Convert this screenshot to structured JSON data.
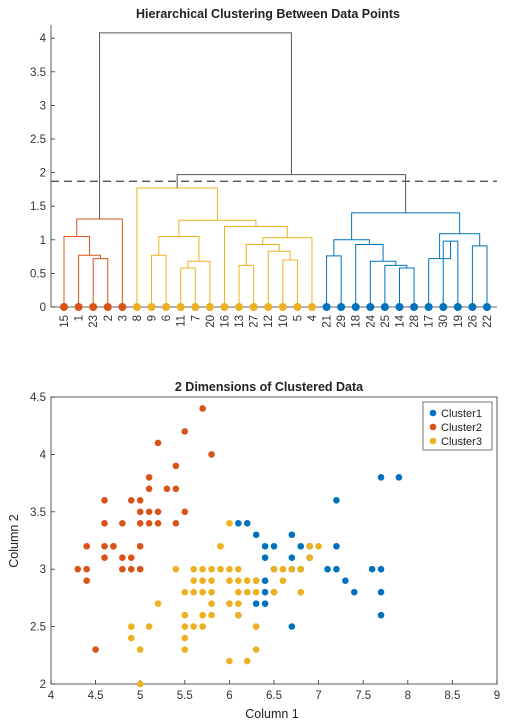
{
  "colors": {
    "cluster1": "#0072BD",
    "cluster2": "#D95319",
    "cluster3": "#EDB120",
    "top": "#555555",
    "cut": "#555555"
  },
  "chart_data": [
    {
      "type": "dendrogram",
      "title": "Hierarchical Clustering Between Data Points",
      "ylim": [
        0,
        4.2
      ],
      "yticks": [
        "0",
        "0.5",
        "1",
        "1.5",
        "2",
        "2.5",
        "3",
        "3.5",
        "4"
      ],
      "cut_height": 1.87,
      "leaves": [
        {
          "label": "15",
          "cluster": 2
        },
        {
          "label": "1",
          "cluster": 2
        },
        {
          "label": "23",
          "cluster": 2
        },
        {
          "label": "2",
          "cluster": 2
        },
        {
          "label": "3",
          "cluster": 2
        },
        {
          "label": "8",
          "cluster": 3
        },
        {
          "label": "9",
          "cluster": 3
        },
        {
          "label": "6",
          "cluster": 3
        },
        {
          "label": "11",
          "cluster": 3
        },
        {
          "label": "7",
          "cluster": 3
        },
        {
          "label": "20",
          "cluster": 3
        },
        {
          "label": "16",
          "cluster": 3
        },
        {
          "label": "13",
          "cluster": 3
        },
        {
          "label": "27",
          "cluster": 3
        },
        {
          "label": "12",
          "cluster": 3
        },
        {
          "label": "10",
          "cluster": 3
        },
        {
          "label": "5",
          "cluster": 3
        },
        {
          "label": "4",
          "cluster": 3
        },
        {
          "label": "21",
          "cluster": 1
        },
        {
          "label": "29",
          "cluster": 1
        },
        {
          "label": "18",
          "cluster": 1
        },
        {
          "label": "24",
          "cluster": 1
        },
        {
          "label": "25",
          "cluster": 1
        },
        {
          "label": "14",
          "cluster": 1
        },
        {
          "label": "28",
          "cluster": 1
        },
        {
          "label": "17",
          "cluster": 1
        },
        {
          "label": "30",
          "cluster": 1
        },
        {
          "label": "19",
          "cluster": 1
        },
        {
          "label": "26",
          "cluster": 1
        },
        {
          "label": "22",
          "cluster": 1
        }
      ],
      "merges": [
        {
          "a": "L2",
          "b": "L3",
          "h": 0.72,
          "cluster": 2
        },
        {
          "a": "L1",
          "b": "m0",
          "h": 0.77,
          "cluster": 2
        },
        {
          "a": "L0",
          "b": "m1",
          "h": 1.05,
          "cluster": 2
        },
        {
          "a": "m2",
          "b": "L4",
          "h": 1.31,
          "cluster": 2
        },
        {
          "a": "L8",
          "b": "L9",
          "h": 0.58,
          "cluster": 3
        },
        {
          "a": "m4",
          "b": "L10",
          "h": 0.68,
          "cluster": 3
        },
        {
          "a": "L6",
          "b": "L7",
          "h": 0.77,
          "cluster": 3
        },
        {
          "a": "m6",
          "b": "m5",
          "h": 1.05,
          "cluster": 3
        },
        {
          "a": "L12",
          "b": "L13",
          "h": 0.62,
          "cluster": 3
        },
        {
          "a": "L15",
          "b": "L16",
          "h": 0.7,
          "cluster": 3
        },
        {
          "a": "L14",
          "b": "m9",
          "h": 0.83,
          "cluster": 3
        },
        {
          "a": "m8",
          "b": "m10",
          "h": 0.93,
          "cluster": 3
        },
        {
          "a": "m11",
          "b": "L17",
          "h": 1.03,
          "cluster": 3
        },
        {
          "a": "L11",
          "b": "m12",
          "h": 1.2,
          "cluster": 3
        },
        {
          "a": "m7",
          "b": "m13",
          "h": 1.29,
          "cluster": 3
        },
        {
          "a": "L5",
          "b": "m14",
          "h": 1.77,
          "cluster": 3
        },
        {
          "a": "L18",
          "b": "L19",
          "h": 0.76,
          "cluster": 1
        },
        {
          "a": "L23",
          "b": "L24",
          "h": 0.58,
          "cluster": 1
        },
        {
          "a": "L22",
          "b": "m17",
          "h": 0.62,
          "cluster": 1
        },
        {
          "a": "L21",
          "b": "m18",
          "h": 0.68,
          "cluster": 1
        },
        {
          "a": "L20",
          "b": "m19",
          "h": 0.93,
          "cluster": 1
        },
        {
          "a": "m16",
          "b": "m20",
          "h": 1.0,
          "cluster": 1
        },
        {
          "a": "L28",
          "b": "L29",
          "h": 0.91,
          "cluster": 1
        },
        {
          "a": "L26",
          "b": "L27",
          "h": 0.98,
          "cluster": 1
        },
        {
          "a": "L25",
          "b": "m23",
          "h": 0.72,
          "cluster": 1
        },
        {
          "a": "m24",
          "b": "m22",
          "h": 1.09,
          "cluster": 1
        },
        {
          "a": "m21",
          "b": "m25",
          "h": 1.4,
          "cluster": 1
        },
        {
          "a": "m15",
          "b": "m26",
          "h": 1.97,
          "cluster": 0
        },
        {
          "a": "m3",
          "b": "m27",
          "h": 4.08,
          "cluster": 0
        }
      ]
    },
    {
      "type": "scatter",
      "title": "2 Dimensions of Clustered Data",
      "xlabel": "Column 1",
      "ylabel": "Column 2",
      "xlim": [
        4,
        9
      ],
      "ylim": [
        2,
        4.5
      ],
      "xticks": [
        "4",
        "4.5",
        "5",
        "5.5",
        "6",
        "6.5",
        "7",
        "7.5",
        "8",
        "8.5",
        "9"
      ],
      "yticks": [
        "2",
        "2.5",
        "3",
        "3.5",
        "4",
        "4.5"
      ],
      "legend_position": "top-right",
      "series": [
        {
          "name": "Cluster1",
          "points": [
            [
              7.7,
              3.8
            ],
            [
              7.9,
              3.8
            ],
            [
              7.2,
              3.6
            ],
            [
              6.1,
              3.4
            ],
            [
              6.2,
              3.4
            ],
            [
              6.3,
              3.3
            ],
            [
              6.7,
              3.3
            ],
            [
              6.9,
              3.2
            ],
            [
              7.2,
              3.2
            ],
            [
              6.8,
              3.2
            ],
            [
              6.5,
              3.2
            ],
            [
              6.4,
              3.2
            ],
            [
              6.9,
              3.1
            ],
            [
              6.7,
              3.1
            ],
            [
              6.4,
              3.1
            ],
            [
              7.1,
              3.0
            ],
            [
              7.2,
              3.0
            ],
            [
              7.6,
              3.0
            ],
            [
              7.7,
              3.0
            ],
            [
              6.5,
              3.0
            ],
            [
              6.8,
              3.0
            ],
            [
              6.7,
              3.0
            ],
            [
              6.4,
              2.9
            ],
            [
              6.3,
              2.9
            ],
            [
              7.3,
              2.9
            ],
            [
              6.5,
              2.8
            ],
            [
              6.4,
              2.8
            ],
            [
              7.4,
              2.8
            ],
            [
              7.7,
              2.8
            ],
            [
              6.3,
              2.7
            ],
            [
              6.4,
              2.7
            ],
            [
              6.1,
              2.6
            ],
            [
              7.7,
              2.6
            ],
            [
              6.7,
              2.5
            ]
          ]
        },
        {
          "name": "Cluster2",
          "points": [
            [
              5.7,
              4.4
            ],
            [
              5.2,
              4.1
            ],
            [
              5.5,
              4.2
            ],
            [
              5.8,
              4.0
            ],
            [
              5.4,
              3.9
            ],
            [
              5.1,
              3.8
            ],
            [
              5.0,
              3.6
            ],
            [
              4.6,
              3.6
            ],
            [
              4.9,
              3.6
            ],
            [
              5.1,
              3.7
            ],
            [
              5.3,
              3.7
            ],
            [
              5.4,
              3.7
            ],
            [
              5.0,
              3.5
            ],
            [
              5.1,
              3.5
            ],
            [
              5.5,
              3.5
            ],
            [
              5.2,
              3.5
            ],
            [
              4.6,
              3.4
            ],
            [
              4.8,
              3.4
            ],
            [
              5.0,
              3.4
            ],
            [
              5.1,
              3.4
            ],
            [
              5.2,
              3.4
            ],
            [
              5.4,
              3.4
            ],
            [
              4.7,
              3.2
            ],
            [
              4.6,
              3.2
            ],
            [
              4.8,
              3.1
            ],
            [
              4.9,
              3.1
            ],
            [
              5.0,
              3.2
            ],
            [
              4.4,
              3.2
            ],
            [
              4.6,
              3.1
            ],
            [
              4.7,
              3.2
            ],
            [
              4.8,
              3.0
            ],
            [
              4.9,
              3.0
            ],
            [
              5.0,
              3.0
            ],
            [
              4.3,
              3.0
            ],
            [
              4.4,
              3.0
            ],
            [
              4.4,
              2.9
            ],
            [
              4.5,
              2.3
            ]
          ]
        },
        {
          "name": "Cluster3",
          "points": [
            [
              6.0,
              3.4
            ],
            [
              5.9,
              3.2
            ],
            [
              6.1,
              3.0
            ],
            [
              5.8,
              3.0
            ],
            [
              5.6,
              3.0
            ],
            [
              5.7,
              3.0
            ],
            [
              5.4,
              3.0
            ],
            [
              5.9,
              3.0
            ],
            [
              6.0,
              3.0
            ],
            [
              6.6,
              3.0
            ],
            [
              6.5,
              3.0
            ],
            [
              6.9,
              3.1
            ],
            [
              6.6,
              2.9
            ],
            [
              5.6,
              2.9
            ],
            [
              5.7,
              2.9
            ],
            [
              5.8,
              2.9
            ],
            [
              6.0,
              2.9
            ],
            [
              6.1,
              2.9
            ],
            [
              6.2,
              2.9
            ],
            [
              6.3,
              2.9
            ],
            [
              5.5,
              2.8
            ],
            [
              5.6,
              2.8
            ],
            [
              5.7,
              2.8
            ],
            [
              5.8,
              2.8
            ],
            [
              6.1,
              2.8
            ],
            [
              6.2,
              2.8
            ],
            [
              6.3,
              2.8
            ],
            [
              5.8,
              2.7
            ],
            [
              6.0,
              2.7
            ],
            [
              6.1,
              2.7
            ],
            [
              5.2,
              2.7
            ],
            [
              5.5,
              2.6
            ],
            [
              5.7,
              2.6
            ],
            [
              5.8,
              2.6
            ],
            [
              6.1,
              2.6
            ],
            [
              5.5,
              2.5
            ],
            [
              5.6,
              2.5
            ],
            [
              5.7,
              2.5
            ],
            [
              6.3,
              2.5
            ],
            [
              5.1,
              2.5
            ],
            [
              4.9,
              2.5
            ],
            [
              4.9,
              2.4
            ],
            [
              5.5,
              2.4
            ],
            [
              5.5,
              2.3
            ],
            [
              6.3,
              2.3
            ],
            [
              5.0,
              2.3
            ],
            [
              6.0,
              2.2
            ],
            [
              6.2,
              2.2
            ],
            [
              5.0,
              2.0
            ],
            [
              6.5,
              2.8
            ],
            [
              6.6,
              3.0
            ],
            [
              6.7,
              3.0
            ],
            [
              6.8,
              2.8
            ],
            [
              6.9,
              3.2
            ],
            [
              7.0,
              3.2
            ],
            [
              6.8,
              3.0
            ]
          ]
        }
      ]
    }
  ]
}
